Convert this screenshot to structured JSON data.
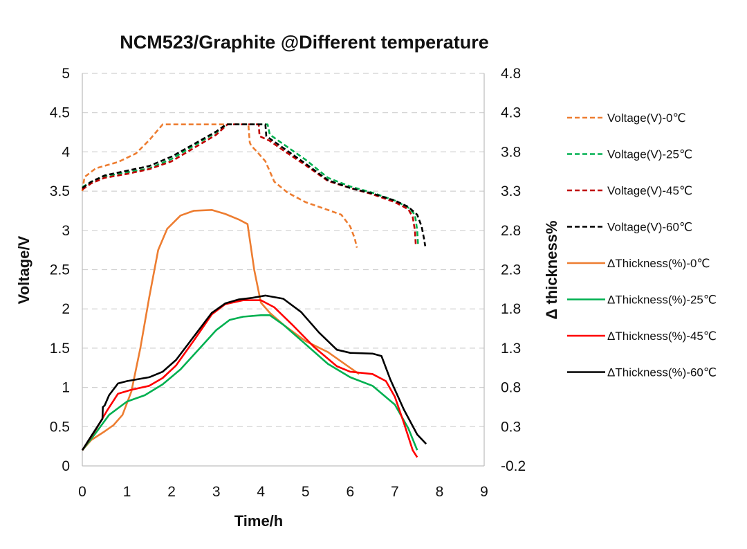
{
  "chart_data": {
    "type": "line",
    "title": "NCM523/Graphite @Different temperature",
    "xlabel": "Time/h",
    "ylabel": "Voltage/V",
    "y2label": "Δ thickness%",
    "xlim": [
      0,
      9
    ],
    "ylim": [
      0,
      5
    ],
    "y2lim": [
      -0.2,
      4.8
    ],
    "xticks": [
      "0",
      "1",
      "2",
      "3",
      "4",
      "5",
      "6",
      "7",
      "8",
      "9"
    ],
    "yticks": [
      "0",
      "0.5",
      "1",
      "1.5",
      "2",
      "2.5",
      "3",
      "3.5",
      "4",
      "4.5",
      "5"
    ],
    "y2ticks": [
      "-0.2",
      "0.3",
      "0.8",
      "1.3",
      "1.8",
      "2.3",
      "2.8",
      "3.3",
      "3.8",
      "4.3",
      "4.8"
    ],
    "grid": "horizontal dashed",
    "legend_position": "right",
    "series": [
      {
        "name": "Voltage(V)-0℃",
        "axis": "left",
        "dash": true,
        "color": "#ED7D31",
        "points": [
          [
            0,
            3.5
          ],
          [
            0.05,
            3.68
          ],
          [
            0.3,
            3.79
          ],
          [
            0.8,
            3.87
          ],
          [
            1.2,
            3.98
          ],
          [
            1.5,
            4.15
          ],
          [
            1.8,
            4.35
          ],
          [
            2.5,
            4.35
          ],
          [
            3.0,
            4.35
          ],
          [
            3.72,
            4.35
          ],
          [
            3.75,
            4.12
          ],
          [
            3.78,
            4.08
          ],
          [
            3.9,
            4.01
          ],
          [
            4.1,
            3.88
          ],
          [
            4.3,
            3.62
          ],
          [
            4.6,
            3.48
          ],
          [
            5.0,
            3.36
          ],
          [
            5.4,
            3.28
          ],
          [
            5.8,
            3.2
          ],
          [
            6.0,
            3.05
          ],
          [
            6.1,
            2.9
          ],
          [
            6.15,
            2.78
          ]
        ]
      },
      {
        "name": "Voltage(V)-25℃",
        "axis": "left",
        "dash": true,
        "color": "#00B050",
        "points": [
          [
            0,
            3.55
          ],
          [
            0.2,
            3.62
          ],
          [
            0.5,
            3.69
          ],
          [
            1.0,
            3.74
          ],
          [
            1.5,
            3.79
          ],
          [
            2.0,
            3.91
          ],
          [
            2.5,
            4.08
          ],
          [
            3.0,
            4.25
          ],
          [
            3.25,
            4.35
          ],
          [
            4.0,
            4.35
          ],
          [
            4.15,
            4.35
          ],
          [
            4.2,
            4.22
          ],
          [
            4.5,
            4.1
          ],
          [
            5.0,
            3.9
          ],
          [
            5.5,
            3.67
          ],
          [
            6.0,
            3.56
          ],
          [
            6.5,
            3.48
          ],
          [
            7.0,
            3.38
          ],
          [
            7.3,
            3.29
          ],
          [
            7.45,
            3.2
          ],
          [
            7.5,
            3.0
          ],
          [
            7.52,
            2.8
          ]
        ]
      },
      {
        "name": "Voltage(V)-45℃",
        "axis": "left",
        "dash": true,
        "color": "#C00000",
        "points": [
          [
            0,
            3.52
          ],
          [
            0.2,
            3.6
          ],
          [
            0.5,
            3.67
          ],
          [
            1.0,
            3.72
          ],
          [
            1.5,
            3.78
          ],
          [
            2.0,
            3.88
          ],
          [
            2.5,
            4.05
          ],
          [
            3.0,
            4.22
          ],
          [
            3.25,
            4.35
          ],
          [
            3.95,
            4.35
          ],
          [
            3.97,
            4.2
          ],
          [
            4.2,
            4.14
          ],
          [
            4.5,
            4.02
          ],
          [
            5.0,
            3.83
          ],
          [
            5.5,
            3.63
          ],
          [
            6.0,
            3.54
          ],
          [
            6.5,
            3.46
          ],
          [
            7.0,
            3.36
          ],
          [
            7.3,
            3.27
          ],
          [
            7.4,
            3.17
          ],
          [
            7.45,
            3.0
          ],
          [
            7.47,
            2.8
          ]
        ]
      },
      {
        "name": "Voltage(V)-60℃",
        "axis": "left",
        "dash": true,
        "color": "#000000",
        "points": [
          [
            0,
            3.54
          ],
          [
            0.2,
            3.62
          ],
          [
            0.5,
            3.7
          ],
          [
            1.0,
            3.76
          ],
          [
            1.5,
            3.82
          ],
          [
            2.0,
            3.94
          ],
          [
            2.5,
            4.1
          ],
          [
            3.0,
            4.26
          ],
          [
            3.22,
            4.35
          ],
          [
            4.1,
            4.35
          ],
          [
            4.12,
            4.2
          ],
          [
            4.5,
            4.05
          ],
          [
            5.0,
            3.85
          ],
          [
            5.5,
            3.64
          ],
          [
            6.0,
            3.54
          ],
          [
            6.5,
            3.47
          ],
          [
            7.0,
            3.38
          ],
          [
            7.3,
            3.3
          ],
          [
            7.5,
            3.2
          ],
          [
            7.6,
            3.05
          ],
          [
            7.65,
            2.9
          ],
          [
            7.68,
            2.8
          ]
        ]
      },
      {
        "name": "ΔThickness(%)-0℃",
        "axis": "right",
        "dash": false,
        "color": "#ED7D31",
        "points": [
          [
            0,
            0.0
          ],
          [
            0.2,
            0.13
          ],
          [
            0.5,
            0.24
          ],
          [
            0.7,
            0.32
          ],
          [
            0.9,
            0.45
          ],
          [
            1.1,
            0.75
          ],
          [
            1.3,
            1.3
          ],
          [
            1.5,
            1.95
          ],
          [
            1.7,
            2.55
          ],
          [
            1.9,
            2.82
          ],
          [
            2.2,
            2.99
          ],
          [
            2.5,
            3.05
          ],
          [
            2.9,
            3.06
          ],
          [
            3.2,
            3.01
          ],
          [
            3.5,
            2.94
          ],
          [
            3.7,
            2.88
          ],
          [
            3.85,
            2.3
          ],
          [
            4.0,
            1.88
          ],
          [
            4.2,
            1.75
          ],
          [
            4.5,
            1.6
          ],
          [
            5.0,
            1.39
          ],
          [
            5.5,
            1.25
          ],
          [
            6.0,
            1.05
          ],
          [
            6.2,
            0.97
          ]
        ]
      },
      {
        "name": "ΔThickness(%)-25℃",
        "axis": "right",
        "dash": false,
        "color": "#00B050",
        "points": [
          [
            0,
            0.0
          ],
          [
            0.3,
            0.22
          ],
          [
            0.6,
            0.45
          ],
          [
            1.0,
            0.62
          ],
          [
            1.4,
            0.7
          ],
          [
            1.8,
            0.84
          ],
          [
            2.2,
            1.03
          ],
          [
            2.6,
            1.28
          ],
          [
            3.0,
            1.53
          ],
          [
            3.3,
            1.66
          ],
          [
            3.6,
            1.7
          ],
          [
            4.0,
            1.72
          ],
          [
            4.2,
            1.72
          ],
          [
            4.5,
            1.6
          ],
          [
            5.0,
            1.35
          ],
          [
            5.5,
            1.1
          ],
          [
            6.0,
            0.93
          ],
          [
            6.5,
            0.82
          ],
          [
            7.0,
            0.58
          ],
          [
            7.3,
            0.28
          ],
          [
            7.5,
            0.0
          ]
        ]
      },
      {
        "name": "ΔThickness(%)-45℃",
        "axis": "right",
        "dash": false,
        "color": "#FF0000",
        "points": [
          [
            0,
            0.0
          ],
          [
            0.3,
            0.26
          ],
          [
            0.55,
            0.5
          ],
          [
            0.8,
            0.72
          ],
          [
            1.1,
            0.77
          ],
          [
            1.5,
            0.82
          ],
          [
            1.8,
            0.92
          ],
          [
            2.1,
            1.08
          ],
          [
            2.5,
            1.4
          ],
          [
            2.9,
            1.73
          ],
          [
            3.2,
            1.86
          ],
          [
            3.6,
            1.91
          ],
          [
            4.0,
            1.91
          ],
          [
            4.3,
            1.82
          ],
          [
            4.7,
            1.6
          ],
          [
            5.2,
            1.31
          ],
          [
            5.7,
            1.07
          ],
          [
            6.0,
            1.0
          ],
          [
            6.5,
            0.97
          ],
          [
            6.8,
            0.88
          ],
          [
            7.0,
            0.68
          ],
          [
            7.2,
            0.35
          ],
          [
            7.4,
            0.0
          ],
          [
            7.5,
            -0.09
          ]
        ]
      },
      {
        "name": "ΔThickness(%)-60℃",
        "axis": "right",
        "dash": false,
        "color": "#000000",
        "points": [
          [
            0,
            0.0
          ],
          [
            0.2,
            0.18
          ],
          [
            0.45,
            0.4
          ],
          [
            0.46,
            0.55
          ],
          [
            0.5,
            0.57
          ],
          [
            0.6,
            0.7
          ],
          [
            0.8,
            0.85
          ],
          [
            1.0,
            0.88
          ],
          [
            1.5,
            0.93
          ],
          [
            1.8,
            1.0
          ],
          [
            2.1,
            1.15
          ],
          [
            2.5,
            1.45
          ],
          [
            2.9,
            1.75
          ],
          [
            3.2,
            1.87
          ],
          [
            3.5,
            1.92
          ],
          [
            3.8,
            1.94
          ],
          [
            4.1,
            1.97
          ],
          [
            4.5,
            1.93
          ],
          [
            4.9,
            1.76
          ],
          [
            5.3,
            1.5
          ],
          [
            5.7,
            1.28
          ],
          [
            6.0,
            1.24
          ],
          [
            6.5,
            1.23
          ],
          [
            6.7,
            1.2
          ],
          [
            6.9,
            0.9
          ],
          [
            7.2,
            0.52
          ],
          [
            7.5,
            0.2
          ],
          [
            7.7,
            0.08
          ]
        ]
      }
    ]
  }
}
